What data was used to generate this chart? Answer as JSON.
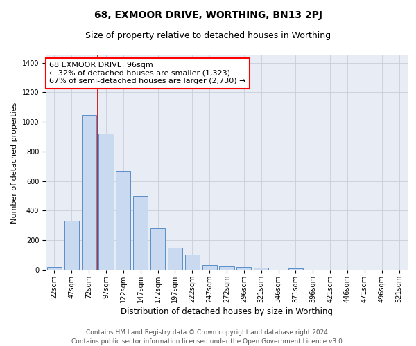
{
  "title1": "68, EXMOOR DRIVE, WORTHING, BN13 2PJ",
  "title2": "Size of property relative to detached houses in Worthing",
  "xlabel": "Distribution of detached houses by size in Worthing",
  "ylabel": "Number of detached properties",
  "categories": [
    "22sqm",
    "47sqm",
    "72sqm",
    "97sqm",
    "122sqm",
    "147sqm",
    "172sqm",
    "197sqm",
    "222sqm",
    "247sqm",
    "272sqm",
    "296sqm",
    "321sqm",
    "346sqm",
    "371sqm",
    "396sqm",
    "421sqm",
    "446sqm",
    "471sqm",
    "496sqm",
    "521sqm"
  ],
  "values": [
    20,
    330,
    1050,
    920,
    670,
    500,
    280,
    150,
    105,
    35,
    25,
    20,
    15,
    0,
    10,
    0,
    0,
    0,
    0,
    0,
    0
  ],
  "bar_color": "#c8d9f0",
  "bar_edge_color": "#5b8fc9",
  "vline_x": 2.5,
  "annotation_text_line1": "68 EXMOOR DRIVE: 96sqm",
  "annotation_text_line2": "← 32% of detached houses are smaller (1,323)",
  "annotation_text_line3": "67% of semi-detached houses are larger (2,730) →",
  "annotation_box_color": "white",
  "annotation_box_edge_color": "red",
  "vline_color": "#cc0000",
  "ylim": [
    0,
    1450
  ],
  "yticks": [
    0,
    200,
    400,
    600,
    800,
    1000,
    1200,
    1400
  ],
  "grid_color": "#c8cdd8",
  "background_color": "#e8edf5",
  "footer_text": "Contains HM Land Registry data © Crown copyright and database right 2024.\nContains public sector information licensed under the Open Government Licence v3.0.",
  "title1_fontsize": 10,
  "title2_fontsize": 9,
  "xlabel_fontsize": 8.5,
  "ylabel_fontsize": 8,
  "tick_fontsize": 7,
  "annotation_fontsize": 8,
  "footer_fontsize": 6.5
}
